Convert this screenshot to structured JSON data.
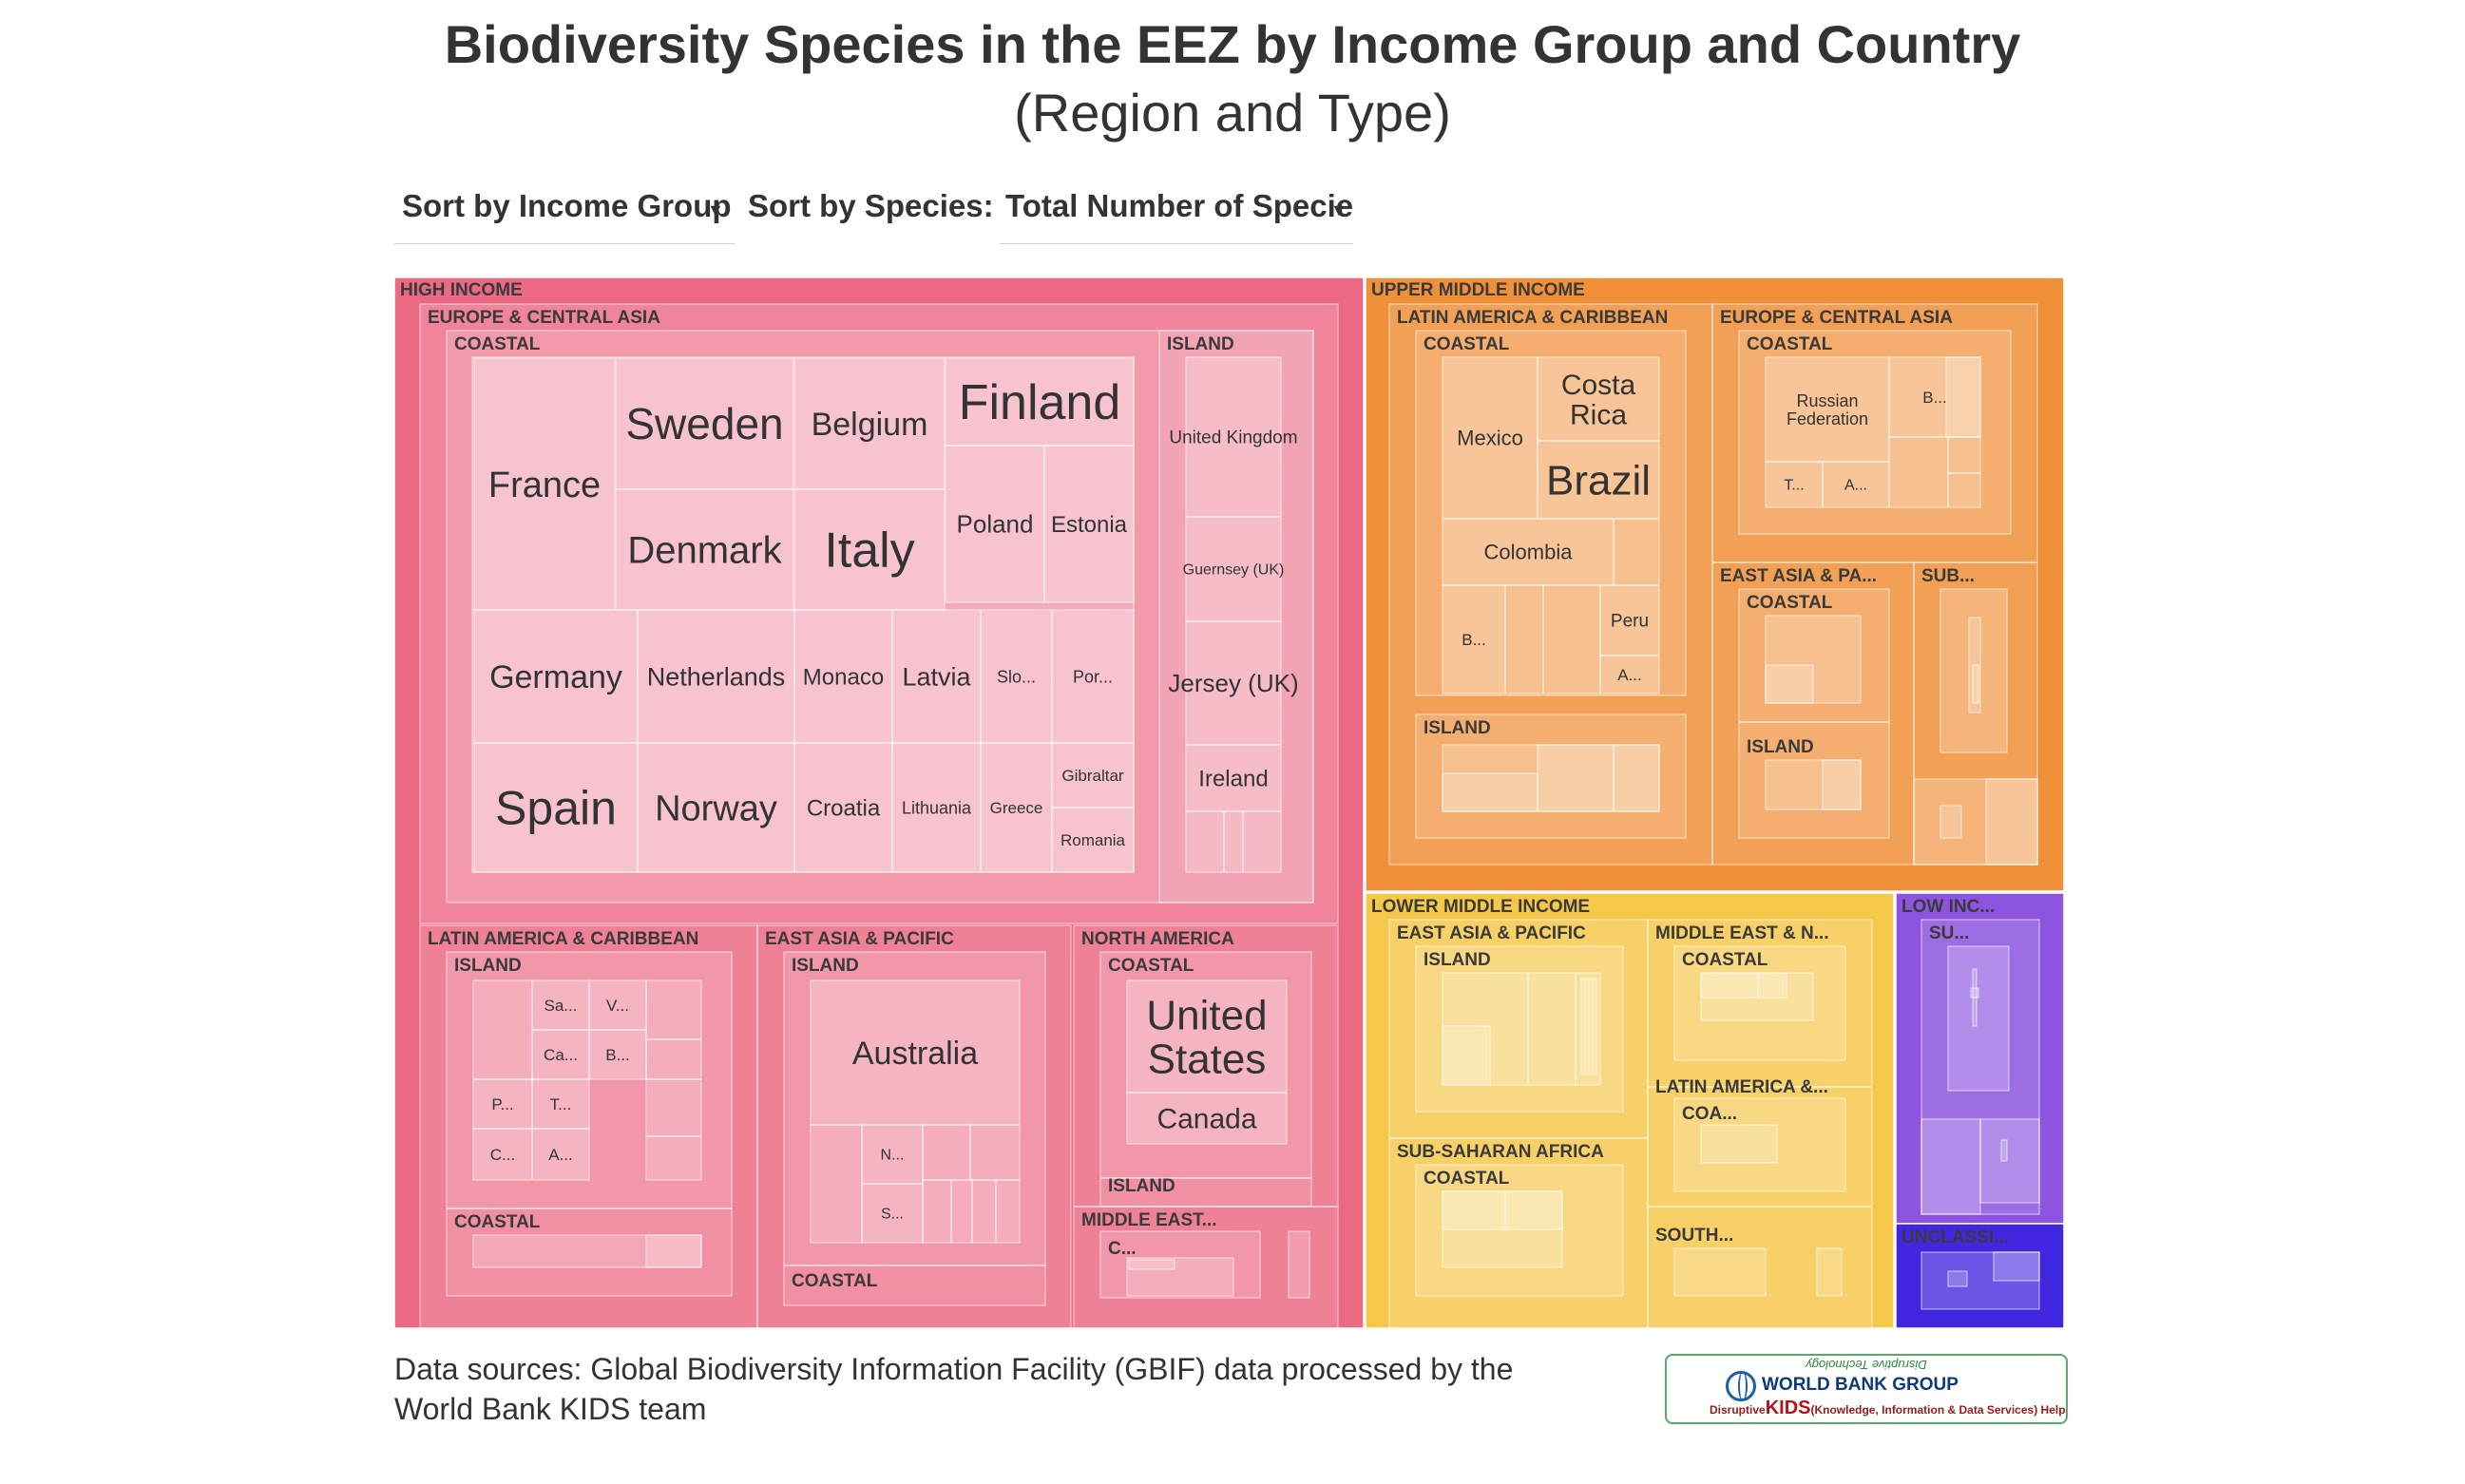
{
  "header": {
    "title": "Biodiversity Species in the EEZ by Income Group and Country",
    "subtitle": "(Region and Type)"
  },
  "controls": {
    "sort_income_label": "Sort by Income Group",
    "sort_species_label": "Sort by Species:",
    "species_select_value": "Total Number of Specie"
  },
  "footer": {
    "sources": "Data sources: Global Biodiversity Information Facility (GBIF) data processed by the World Bank KIDS team"
  },
  "logo": {
    "line1": "Disruptive Technology",
    "line2": "WORLD BANK GROUP",
    "line3_pre": "Disruptive",
    "line3_kids": "KIDS",
    "line3_post": "(Knowledge, Information & Data Services) Helpdesk"
  },
  "colors": {
    "high_income": "#ec6984",
    "upper_middle_income": "#f0913a",
    "lower_middle_income": "#f6c84a",
    "low_income": "#8d55df",
    "unclassified": "#4126e0"
  },
  "chart_data": {
    "type": "treemap",
    "title": "Biodiversity Species in the EEZ by Income Group and Country",
    "subtitle": "(Region and Type)",
    "hierarchy": [
      "income_group",
      "region",
      "type",
      "country"
    ],
    "groups": [
      {
        "name": "HIGH INCOME",
        "regions": [
          {
            "name": "EUROPE & CENTRAL ASIA",
            "types": [
              {
                "name": "COASTAL",
                "countries": [
                  "France",
                  "Sweden",
                  "Belgium",
                  "Finland",
                  "Denmark",
                  "Italy",
                  "Poland",
                  "Estonia",
                  "Germany",
                  "Netherlands",
                  "Monaco",
                  "Latvia",
                  "Slo...",
                  "Por...",
                  "Spain",
                  "Norway",
                  "Croatia",
                  "Lithuania",
                  "Greece",
                  "Gibraltar",
                  "Romania"
                ]
              },
              {
                "name": "ISLAND",
                "countries": [
                  "United Kingdom",
                  "Guernsey (UK)",
                  "Jersey (UK)",
                  "Ireland"
                ]
              }
            ]
          },
          {
            "name": "LATIN AMERICA & CARIBBEAN",
            "types": [
              {
                "name": "ISLAND",
                "countries": [
                  "Sa...",
                  "V...",
                  "Ca...",
                  "B...",
                  "P...",
                  "T...",
                  "C...",
                  "A..."
                ]
              },
              {
                "name": "COASTAL",
                "countries": []
              }
            ]
          },
          {
            "name": "EAST ASIA & PACIFIC",
            "types": [
              {
                "name": "ISLAND",
                "countries": [
                  "Australia",
                  "N...",
                  "S..."
                ]
              },
              {
                "name": "COASTAL",
                "countries": []
              }
            ]
          },
          {
            "name": "NORTH AMERICA",
            "types": [
              {
                "name": "COASTAL",
                "countries": [
                  "United States",
                  "Canada"
                ]
              },
              {
                "name": "ISLAND",
                "countries": []
              }
            ]
          },
          {
            "name": "MIDDLE EAST...",
            "types": [
              {
                "name": "C...",
                "countries": []
              }
            ]
          }
        ]
      },
      {
        "name": "UPPER MIDDLE INCOME",
        "regions": [
          {
            "name": "LATIN AMERICA & CARIBBEAN",
            "types": [
              {
                "name": "COASTAL",
                "countries": [
                  "Mexico",
                  "Costa Rica",
                  "Brazil",
                  "Colombia",
                  "B...",
                  "Peru",
                  "A..."
                ]
              },
              {
                "name": "ISLAND",
                "countries": []
              }
            ]
          },
          {
            "name": "EUROPE & CENTRAL ASIA",
            "types": [
              {
                "name": "COASTAL",
                "countries": [
                  "Russian Federation",
                  "B...",
                  "T...",
                  "A..."
                ]
              }
            ]
          },
          {
            "name": "EAST ASIA & PA...",
            "types": [
              {
                "name": "COASTAL",
                "countries": []
              },
              {
                "name": "ISLAND",
                "countries": []
              }
            ]
          },
          {
            "name": "SUB...",
            "types": []
          }
        ]
      },
      {
        "name": "LOWER MIDDLE INCOME",
        "regions": [
          {
            "name": "EAST ASIA & PACIFIC",
            "types": [
              {
                "name": "ISLAND",
                "countries": []
              }
            ]
          },
          {
            "name": "MIDDLE EAST & N...",
            "types": [
              {
                "name": "COASTAL",
                "countries": []
              }
            ]
          },
          {
            "name": "LATIN AMERICA &...",
            "types": [
              {
                "name": "COA...",
                "countries": []
              }
            ]
          },
          {
            "name": "SUB-SAHARAN AFRICA",
            "types": [
              {
                "name": "COASTAL",
                "countries": []
              }
            ]
          },
          {
            "name": "SOUTH...",
            "types": []
          }
        ]
      },
      {
        "name": "LOW INC...",
        "regions": [
          {
            "name": "SU...",
            "types": []
          }
        ]
      },
      {
        "name": "UNCLASSI...",
        "regions": []
      }
    ]
  }
}
